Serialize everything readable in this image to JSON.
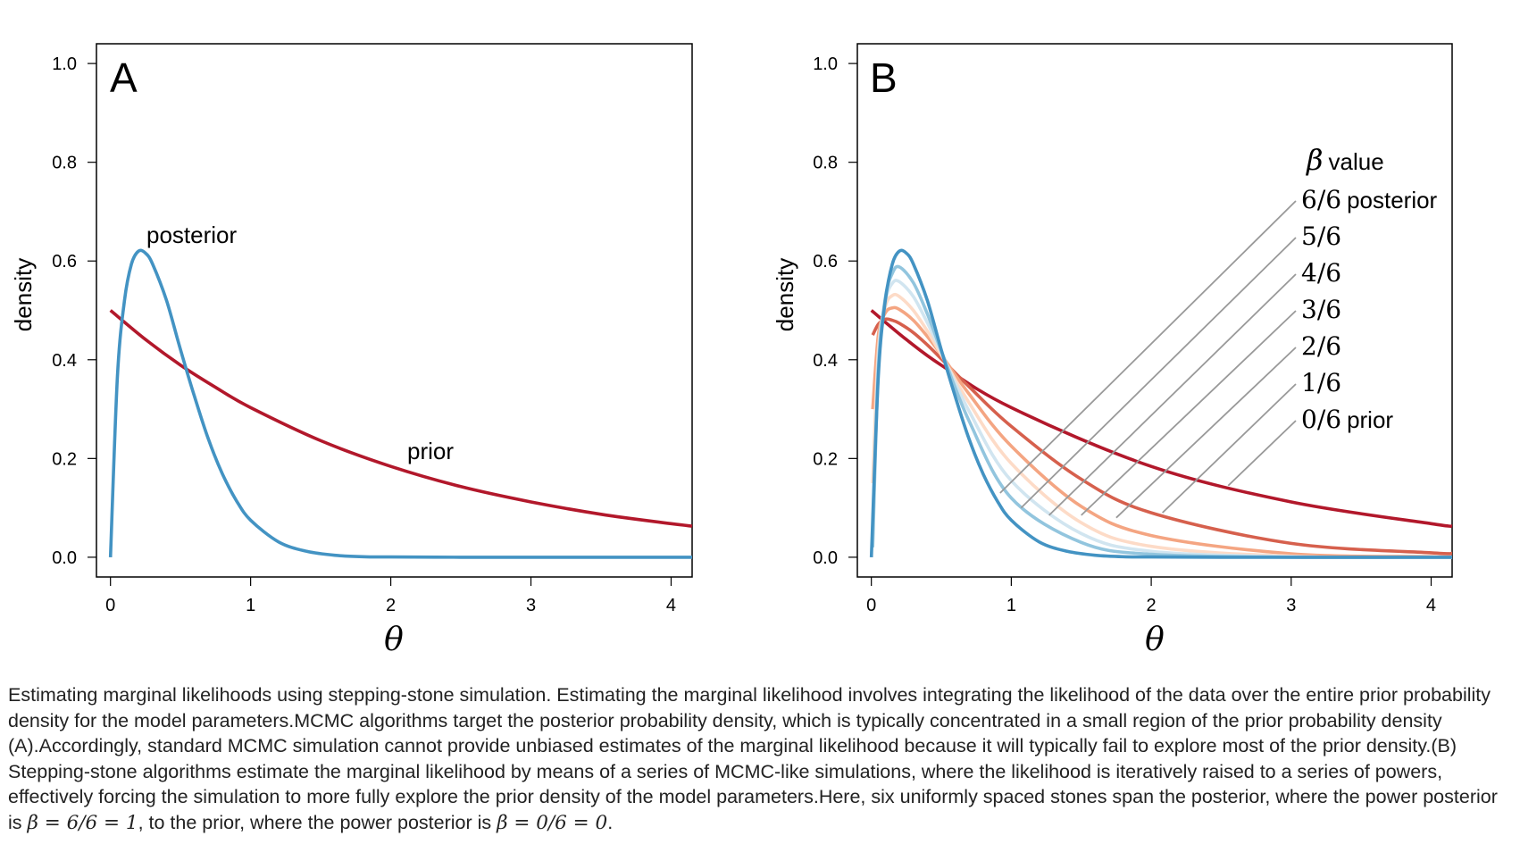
{
  "chart_data": [
    {
      "type": "line",
      "panel_label": "A",
      "xlabel": "θ",
      "ylabel": "density",
      "xlim": [
        -0.1,
        4.15
      ],
      "ylim": [
        -0.04,
        1.04
      ],
      "x_ticks": [
        "0",
        "1",
        "2",
        "3",
        "4"
      ],
      "y_ticks": [
        "0.0",
        "0.2",
        "0.4",
        "0.6",
        "0.8",
        "1.0"
      ],
      "grid": false,
      "series": [
        {
          "name": "prior",
          "color": "#B2182B",
          "x": [
            0,
            0.25,
            0.5,
            0.75,
            1,
            1.5,
            2,
            2.5,
            3,
            3.5,
            4,
            4.15
          ],
          "y": [
            0.5,
            0.441,
            0.389,
            0.344,
            0.303,
            0.236,
            0.184,
            0.143,
            0.112,
            0.087,
            0.068,
            0.063
          ]
        },
        {
          "name": "posterior",
          "color": "#4393C3",
          "x": [
            0,
            0.05,
            0.1,
            0.15,
            0.2,
            0.25,
            0.3,
            0.4,
            0.5,
            0.6,
            0.7,
            0.8,
            0.9,
            1.0,
            1.2,
            1.4,
            1.6,
            1.8,
            2.0,
            2.5,
            3.0,
            4.15
          ],
          "y": [
            0,
            0.367,
            0.52,
            0.594,
            0.62,
            0.616,
            0.594,
            0.52,
            0.42,
            0.325,
            0.238,
            0.168,
            0.114,
            0.075,
            0.031,
            0.012,
            0.004,
            0.001,
            0.0005,
            0,
            0,
            0
          ]
        }
      ],
      "annotations": [
        "posterior",
        "prior"
      ]
    },
    {
      "type": "line",
      "panel_label": "B",
      "xlabel": "θ",
      "ylabel": "density",
      "xlim": [
        -0.1,
        4.15
      ],
      "ylim": [
        -0.04,
        1.04
      ],
      "x_ticks": [
        "0",
        "1",
        "2",
        "3",
        "4"
      ],
      "y_ticks": [
        "0.0",
        "0.2",
        "0.4",
        "0.6",
        "0.8",
        "1.0"
      ],
      "grid": false,
      "legend_title_symbol": "β",
      "legend_title": "value",
      "legend_placement": "right",
      "series": [
        {
          "label": "0/6",
          "suffix": "prior",
          "color": "#B2182B",
          "x": [
            0,
            0.25,
            0.5,
            1,
            2,
            3,
            4,
            4.15
          ],
          "y": [
            0.5,
            0.441,
            0.389,
            0.303,
            0.184,
            0.112,
            0.068,
            0.063
          ]
        },
        {
          "label": "1/6",
          "suffix": "",
          "color": "#D6604D",
          "x": [
            0.01,
            0.05,
            0.1,
            0.15,
            0.2,
            0.3,
            0.4,
            0.5,
            0.7,
            1,
            1.5,
            2,
            3,
            4,
            4.15
          ],
          "y": [
            0.45,
            0.472,
            0.482,
            0.48,
            0.474,
            0.455,
            0.43,
            0.402,
            0.345,
            0.265,
            0.158,
            0.09,
            0.028,
            0.009,
            0.008
          ]
        },
        {
          "label": "2/6",
          "suffix": "",
          "color": "#F4A582",
          "x": [
            0.01,
            0.05,
            0.1,
            0.15,
            0.2,
            0.3,
            0.4,
            0.5,
            0.7,
            1,
            1.5,
            2,
            3,
            4,
            4.15
          ],
          "y": [
            0.3,
            0.45,
            0.495,
            0.505,
            0.502,
            0.48,
            0.447,
            0.41,
            0.33,
            0.225,
            0.103,
            0.044,
            0.007,
            0.001,
            0.0005
          ]
        },
        {
          "label": "3/6",
          "suffix": "",
          "color": "#FDDBC7",
          "x": [
            0.01,
            0.05,
            0.1,
            0.15,
            0.2,
            0.3,
            0.4,
            0.5,
            0.7,
            1,
            1.5,
            2,
            3,
            4,
            4.15
          ],
          "y": [
            0.15,
            0.42,
            0.508,
            0.53,
            0.528,
            0.5,
            0.458,
            0.41,
            0.312,
            0.19,
            0.07,
            0.022,
            0.002,
            0,
            0
          ]
        },
        {
          "label": "4/6",
          "suffix": "",
          "color": "#D1E5F0",
          "x": [
            0.01,
            0.05,
            0.1,
            0.15,
            0.2,
            0.3,
            0.4,
            0.5,
            0.7,
            1,
            1.5,
            2,
            3,
            4,
            4.15
          ],
          "y": [
            0.06,
            0.4,
            0.518,
            0.555,
            0.558,
            0.528,
            0.475,
            0.415,
            0.295,
            0.155,
            0.048,
            0.012,
            0.001,
            0,
            0
          ]
        },
        {
          "label": "5/6",
          "suffix": "",
          "color": "#92C5DE",
          "x": [
            0.01,
            0.05,
            0.1,
            0.15,
            0.2,
            0.3,
            0.4,
            0.5,
            0.7,
            1,
            1.5,
            2,
            3,
            4,
            4.15
          ],
          "y": [
            0.02,
            0.38,
            0.525,
            0.575,
            0.588,
            0.556,
            0.493,
            0.418,
            0.275,
            0.12,
            0.03,
            0.006,
            0,
            0,
            0
          ]
        },
        {
          "label": "6/6",
          "suffix": "posterior",
          "color": "#4393C3",
          "x": [
            0,
            0.05,
            0.1,
            0.15,
            0.2,
            0.25,
            0.3,
            0.4,
            0.5,
            0.6,
            0.7,
            0.8,
            0.9,
            1.0,
            1.2,
            1.4,
            1.6,
            1.8,
            2.0,
            2.5,
            3.0,
            4.15
          ],
          "y": [
            0,
            0.367,
            0.52,
            0.594,
            0.62,
            0.616,
            0.594,
            0.52,
            0.42,
            0.325,
            0.238,
            0.168,
            0.114,
            0.075,
            0.031,
            0.012,
            0.004,
            0.001,
            0.0005,
            0,
            0,
            0
          ]
        }
      ]
    }
  ],
  "caption": {
    "text_1": "Estimating marginal likelihoods using stepping-stone simulation. Estimating the marginal likelihood involves integrating the likelihood of the data over the entire prior probability density for the model parameters.MCMC algorithms target the posterior probability density, which is typically concentrated in a small region of the prior probability density (A).Accordingly, standard MCMC simulation cannot provide unbiased estimates of the marginal likelihood because it will typically fail to explore most of the prior density.(B) Stepping-stone algorithms estimate the marginal likelihood by means of a series of MCMC-like simulations, where the likelihood is iteratively raised to a series of powers, effectively forcing the simulation to more fully explore the prior density of the model parameters.Here, six uniformly spaced stones span the posterior, where the power posterior is ",
    "math_1": "β = 6/6 = 1",
    "text_2": ", to the prior, where the power posterior is ",
    "math_2": "β = 0/6 = 0",
    "text_3": "."
  }
}
